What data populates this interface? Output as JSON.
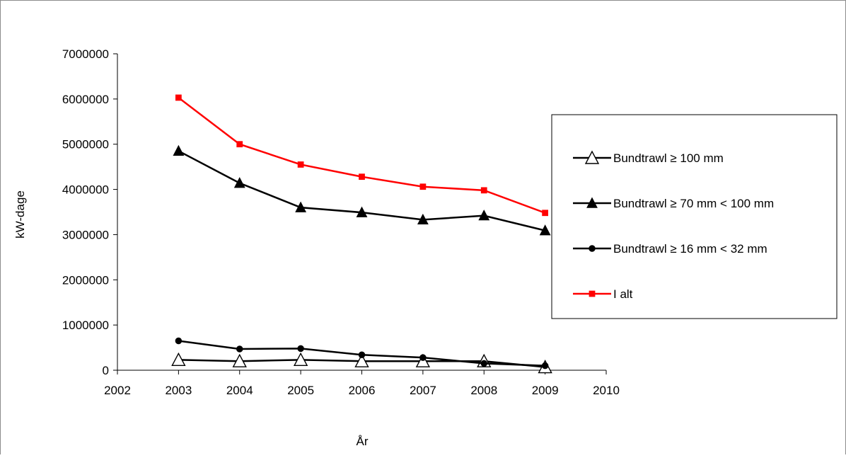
{
  "chart_data": {
    "type": "line",
    "title": "",
    "xlabel": "År",
    "ylabel": "kW-dage",
    "xlim": [
      2002,
      2010
    ],
    "ylim": [
      0,
      7000000
    ],
    "x_ticks": [
      2002,
      2003,
      2004,
      2005,
      2006,
      2007,
      2008,
      2009,
      2010
    ],
    "y_ticks": [
      0,
      1000000,
      2000000,
      3000000,
      4000000,
      5000000,
      6000000,
      7000000
    ],
    "grid": false,
    "legend_position": "right",
    "x": [
      2003,
      2004,
      2005,
      2006,
      2007,
      2008,
      2009
    ],
    "series": [
      {
        "name": "Bundtrawl ≥ 100 mm",
        "color": "#000000",
        "marker": "triangle-open",
        "values": [
          230000,
          200000,
          230000,
          200000,
          200000,
          200000,
          70000
        ]
      },
      {
        "name": "Bundtrawl ≥ 70 mm < 100 mm",
        "color": "#000000",
        "marker": "triangle-filled",
        "values": [
          4850000,
          4140000,
          3600000,
          3490000,
          3330000,
          3420000,
          3090000
        ]
      },
      {
        "name": "Bundtrawl ≥ 16 mm < 32 mm",
        "color": "#000000",
        "marker": "circle-filled",
        "values": [
          650000,
          470000,
          480000,
          340000,
          280000,
          150000,
          100000
        ]
      },
      {
        "name": "I alt",
        "color": "#ff0000",
        "marker": "square-filled",
        "values": [
          6030000,
          5000000,
          4550000,
          4280000,
          4060000,
          3980000,
          3480000
        ]
      }
    ]
  }
}
